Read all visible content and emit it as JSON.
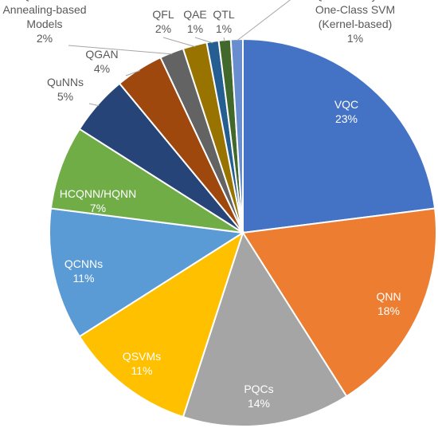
{
  "chart_data": {
    "type": "pie",
    "slices": [
      {
        "label": "VQC",
        "value": 23,
        "display": "23%",
        "color": "#4472C4",
        "label_lines": [
          "VQC"
        ]
      },
      {
        "label": "QNN",
        "value": 18,
        "display": "18%",
        "color": "#ED7D31",
        "label_lines": [
          "QNN"
        ]
      },
      {
        "label": "PQCs",
        "value": 14,
        "display": "14%",
        "color": "#A5A5A5",
        "label_lines": [
          "PQCs"
        ]
      },
      {
        "label": "QSVMs",
        "value": 11,
        "display": "11%",
        "color": "#FFC000",
        "label_lines": [
          "QSVMs"
        ]
      },
      {
        "label": "QCNNs",
        "value": 11,
        "display": "11%",
        "color": "#5B9BD5",
        "label_lines": [
          "QCNNs"
        ]
      },
      {
        "label": "HCQNN/HQNN",
        "value": 7,
        "display": "7%",
        "color": "#70AD47",
        "label_lines": [
          "HCQNN/HQNN"
        ]
      },
      {
        "label": "QuNNs",
        "value": 5,
        "display": "5%",
        "color": "#264478",
        "label_lines": [
          "QuNNs"
        ]
      },
      {
        "label": "QGAN",
        "value": 4,
        "display": "4%",
        "color": "#9E480E",
        "label_lines": [
          "QGAN"
        ]
      },
      {
        "label": "Quantum Annealing-based Models",
        "value": 2,
        "display": "2%",
        "color": "#636363",
        "label_lines": [
          "Quantum",
          "Annealing-based",
          "Models"
        ]
      },
      {
        "label": "QFL",
        "value": 2,
        "display": "2%",
        "color": "#997300",
        "label_lines": [
          "QFL"
        ]
      },
      {
        "label": "QAE",
        "value": 1,
        "display": "1%",
        "color": "#255E91",
        "label_lines": [
          "QAE"
        ]
      },
      {
        "label": "QTL",
        "value": 1,
        "display": "1%",
        "color": "#43682B",
        "label_lines": [
          "QTL"
        ]
      },
      {
        "label": "Quantum Hybrid One-Class SVM (Kernel-based)",
        "value": 1,
        "display": "1%",
        "color": "#698ED0",
        "label_lines": [
          "Quantum Hybrid",
          "One-Class SVM",
          "(Kernel-based)"
        ]
      }
    ]
  }
}
